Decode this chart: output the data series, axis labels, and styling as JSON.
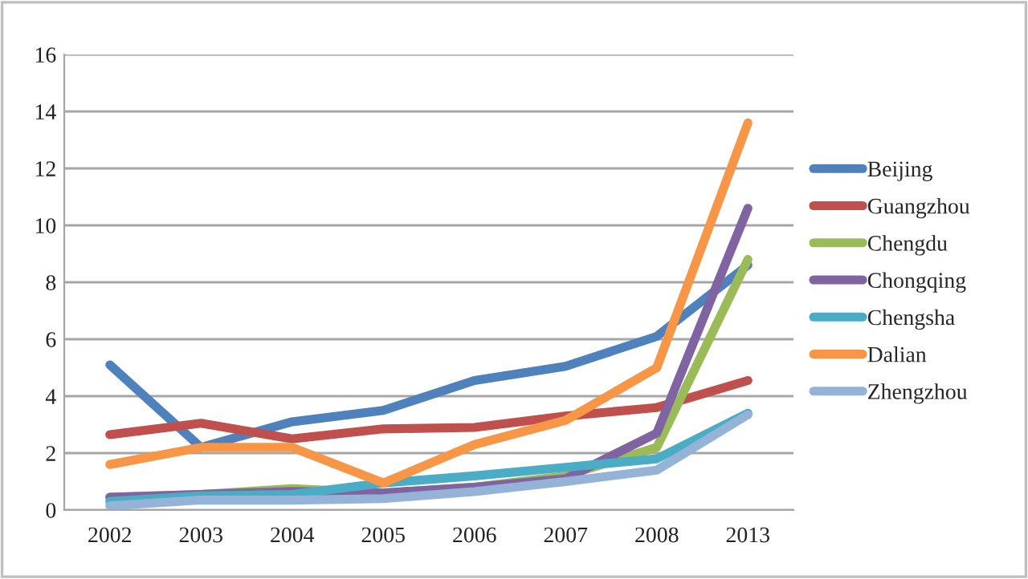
{
  "chart_data": {
    "type": "line",
    "categories": [
      "2002",
      "2003",
      "2004",
      "2005",
      "2006",
      "2007",
      "2008",
      "2013"
    ],
    "series": [
      {
        "name": "Beijing",
        "color": "#4f81bd",
        "values": [
          5.1,
          2.2,
          3.1,
          3.5,
          4.55,
          5.05,
          6.1,
          8.6
        ]
      },
      {
        "name": "Guangzhou",
        "color": "#c0504d",
        "values": [
          2.65,
          3.05,
          2.5,
          2.85,
          2.9,
          3.3,
          3.6,
          4.55
        ]
      },
      {
        "name": "Chengdu",
        "color": "#9bbb59",
        "values": [
          0.45,
          0.55,
          0.75,
          0.6,
          0.8,
          1.2,
          2.2,
          8.8
        ]
      },
      {
        "name": "Chongqing",
        "color": "#8064a2",
        "values": [
          0.45,
          0.55,
          0.65,
          0.6,
          0.8,
          1.1,
          2.7,
          10.6
        ]
      },
      {
        "name": "Chengsha",
        "color": "#4bacc6",
        "values": [
          0.3,
          0.5,
          0.55,
          0.95,
          1.2,
          1.5,
          1.8,
          3.4
        ]
      },
      {
        "name": "Dalian",
        "color": "#f79646",
        "values": [
          1.6,
          2.2,
          2.2,
          0.95,
          2.3,
          3.15,
          5.0,
          13.6
        ]
      },
      {
        "name": "Zhengzhou",
        "color": "#95b3d7",
        "values": [
          0.15,
          0.35,
          0.35,
          0.4,
          0.65,
          1.0,
          1.4,
          3.35
        ]
      }
    ],
    "ylim": [
      0,
      16
    ],
    "yticks": [
      0,
      2,
      4,
      6,
      8,
      10,
      12,
      14,
      16
    ],
    "grid": "y",
    "legend": "right",
    "marker": "none",
    "line_style": "solid"
  }
}
